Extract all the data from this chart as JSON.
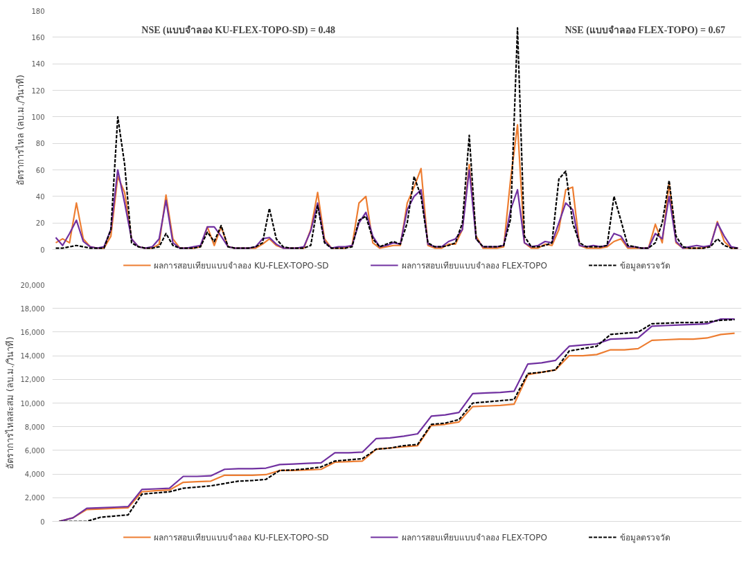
{
  "chart_data": [
    {
      "type": "line",
      "ylabel": "อัตราการไหล (ลบ.ม./วินาที)",
      "annotations": [
        "NSE (แบบจำลอง KU-FLEX-TOPO-SD) = 0.48",
        "NSE (แบบจำลอง FLEX-TOPO) = 0.67"
      ],
      "categories": [
        null,
        null,
        null,
        null,
        null,
        null,
        null,
        null,
        null,
        null,
        null,
        null,
        null,
        null,
        null,
        null,
        null,
        null,
        null,
        null,
        null,
        null,
        null,
        null,
        null,
        null,
        null,
        null,
        null,
        null,
        null,
        null,
        null,
        null,
        null,
        null,
        null,
        null,
        null,
        null,
        null,
        null,
        null,
        null,
        null,
        null,
        null,
        null,
        null,
        null,
        null,
        null,
        null,
        null,
        null,
        null,
        null,
        null,
        null,
        null,
        null,
        null,
        null,
        null,
        null,
        null,
        null,
        null,
        null,
        null,
        null,
        null,
        null,
        null,
        null,
        null,
        null,
        null,
        null,
        null,
        null,
        null,
        null,
        null,
        null,
        null,
        null,
        null,
        null,
        null,
        null,
        null,
        null,
        null,
        null,
        null,
        null,
        null,
        null,
        null
      ],
      "series": [
        {
          "name": "ผลการสอบเทียบแบบจำลอง KU-FLEX-TOPO-SD",
          "color": "#ed7d31",
          "values": [
            5,
            8,
            5,
            35,
            8,
            2,
            1,
            1,
            10,
            55,
            43,
            8,
            2,
            1,
            1,
            4,
            41,
            8,
            1,
            1,
            1,
            2,
            17,
            3,
            17,
            2,
            1,
            1,
            1,
            1,
            4,
            8,
            3,
            1,
            1,
            1,
            1,
            15,
            43,
            8,
            1,
            1,
            1,
            3,
            35,
            40,
            5,
            1,
            2,
            3,
            3,
            35,
            47,
            61,
            3,
            1,
            1,
            4,
            4,
            15,
            64,
            10,
            1,
            1,
            1,
            2,
            53,
            94,
            5,
            1,
            1,
            4,
            3,
            15,
            45,
            47,
            3,
            1,
            1,
            1,
            2,
            6,
            8,
            1,
            1,
            1,
            1,
            19,
            5,
            50,
            5,
            1,
            1,
            1,
            1,
            3,
            21,
            6,
            1,
            1
          ]
        },
        {
          "name": "ผลการสอบเทียบแบบจำลอง FLEX-TOPO",
          "color": "#7030a0",
          "values": [
            9,
            3,
            12,
            22,
            6,
            2,
            1,
            2,
            15,
            60,
            35,
            8,
            2,
            1,
            2,
            8,
            37,
            5,
            1,
            1,
            2,
            3,
            17,
            17,
            10,
            2,
            1,
            1,
            1,
            2,
            8,
            9,
            4,
            1,
            1,
            1,
            2,
            14,
            35,
            6,
            1,
            2,
            2,
            3,
            20,
            28,
            10,
            2,
            3,
            5,
            4,
            30,
            40,
            45,
            4,
            2,
            2,
            6,
            8,
            15,
            60,
            8,
            2,
            2,
            2,
            3,
            30,
            45,
            5,
            2,
            3,
            6,
            5,
            20,
            35,
            30,
            3,
            2,
            3,
            2,
            3,
            12,
            10,
            2,
            2,
            1,
            1,
            12,
            8,
            40,
            6,
            1,
            2,
            3,
            2,
            3,
            20,
            10,
            2,
            1
          ]
        },
        {
          "name": "ข้อมูลตรวจวัด",
          "color": "#000000",
          "line_style": "dashed",
          "values": [
            1,
            1,
            2,
            3,
            2,
            1,
            1,
            1,
            15,
            100,
            64,
            5,
            2,
            1,
            1,
            2,
            12,
            3,
            1,
            1,
            1,
            2,
            13,
            6,
            18,
            2,
            1,
            1,
            1,
            2,
            5,
            31,
            8,
            2,
            1,
            1,
            1,
            3,
            33,
            5,
            1,
            1,
            1,
            2,
            22,
            25,
            8,
            2,
            4,
            6,
            4,
            20,
            55,
            40,
            5,
            2,
            2,
            3,
            5,
            20,
            86,
            8,
            2,
            2,
            2,
            3,
            23,
            167,
            10,
            2,
            2,
            3,
            5,
            53,
            59,
            20,
            5,
            2,
            2,
            2,
            3,
            40,
            22,
            3,
            2,
            1,
            1,
            5,
            20,
            52,
            10,
            2,
            1,
            1,
            1,
            2,
            8,
            3,
            1,
            1
          ]
        }
      ],
      "ylim": [
        0,
        180
      ],
      "yticks": [
        0,
        20,
        40,
        60,
        80,
        100,
        120,
        140,
        160,
        180
      ],
      "grid": "y",
      "legend": "bottom",
      "tick_labels": "y"
    },
    {
      "type": "line",
      "ylabel": "อัตราการไหลสะสม (ลบ.ม./วินาที)",
      "categories": [
        null,
        null,
        null,
        null,
        null,
        null,
        null,
        null,
        null,
        null,
        null,
        null,
        null,
        null,
        null,
        null,
        null,
        null,
        null,
        null,
        null,
        null,
        null,
        null,
        null,
        null,
        null,
        null,
        null,
        null,
        null,
        null,
        null,
        null,
        null,
        null,
        null,
        null,
        null,
        null,
        null,
        null,
        null,
        null,
        null,
        null,
        null,
        null,
        null,
        null
      ],
      "series": [
        {
          "name": "ผลการสอบเทียบแบบจำลอง KU-FLEX-TOPO-SD",
          "color": "#ed7d31",
          "values": [
            0,
            300,
            1000,
            1050,
            1100,
            1150,
            2500,
            2600,
            2650,
            3300,
            3350,
            3400,
            3900,
            3900,
            3900,
            3950,
            4300,
            4300,
            4350,
            4400,
            5000,
            5050,
            5100,
            6100,
            6200,
            6300,
            6400,
            8100,
            8200,
            8400,
            9700,
            9750,
            9800,
            9900,
            12400,
            12600,
            12800,
            14000,
            14000,
            14100,
            14500,
            14500,
            14600,
            15300,
            15350,
            15400,
            15400,
            15500,
            15800,
            15900
          ]
        },
        {
          "name": "ผลการสอบเทียบแบบจำลอง FLEX-TOPO",
          "color": "#7030a0",
          "values": [
            0,
            300,
            1100,
            1150,
            1200,
            1250,
            2700,
            2750,
            2800,
            3800,
            3800,
            3850,
            4400,
            4450,
            4450,
            4500,
            4800,
            4850,
            4900,
            4950,
            5800,
            5800,
            5850,
            7000,
            7050,
            7200,
            7400,
            8900,
            9000,
            9200,
            10800,
            10850,
            10900,
            11000,
            13300,
            13400,
            13600,
            14800,
            14900,
            15000,
            15400,
            15450,
            15500,
            16500,
            16550,
            16600,
            16650,
            16700,
            17100,
            17100
          ]
        },
        {
          "name": "ข้อมูลตรวจวัด",
          "color": "#000000",
          "line_style": "dashed",
          "values": [
            0,
            0,
            0,
            350,
            450,
            550,
            2300,
            2400,
            2500,
            2800,
            2900,
            3000,
            3200,
            3400,
            3450,
            3550,
            4300,
            4350,
            4450,
            4600,
            5100,
            5200,
            5300,
            6100,
            6200,
            6400,
            6500,
            8200,
            8300,
            8600,
            10000,
            10100,
            10200,
            10300,
            12500,
            12600,
            12800,
            14400,
            14600,
            14800,
            15800,
            15900,
            16000,
            16700,
            16750,
            16800,
            16800,
            16850,
            17000,
            17050
          ]
        }
      ],
      "ylim": [
        0,
        20000
      ],
      "yticks": [
        0,
        {
          "value": 2000,
          "label": "2,000"
        },
        {
          "value": 4000,
          "label": "4,000"
        },
        {
          "value": 6000,
          "label": "6,000"
        },
        {
          "value": 8000,
          "label": "8,000"
        },
        {
          "value": 10000,
          "label": "10,000"
        },
        {
          "value": 12000,
          "label": "12,000"
        },
        {
          "value": 14000,
          "label": "14,000"
        },
        {
          "value": 16000,
          "label": "16,000"
        },
        {
          "value": 18000,
          "label": "18,000"
        },
        {
          "value": 20000,
          "label": "20,000"
        }
      ],
      "grid": "y",
      "legend": "bottom",
      "tick_labels": "y"
    }
  ]
}
